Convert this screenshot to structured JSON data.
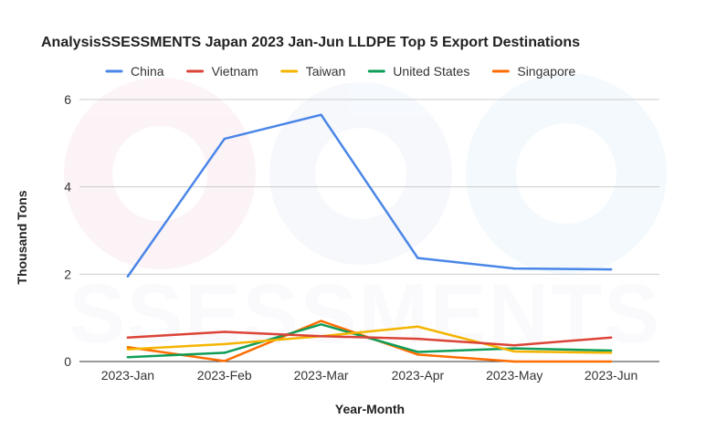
{
  "chart_data": {
    "type": "line",
    "title": "AnalysisSSESSMENTS Japan 2023 Jan-Jun LLDPE Top 5 Export Destinations",
    "xlabel": "Year-Month",
    "ylabel": "Thousand Tons",
    "categories": [
      "2023-Jan",
      "2023-Feb",
      "2023-Mar",
      "2023-Apr",
      "2023-May",
      "2023-Jun"
    ],
    "ylim": [
      0,
      6
    ],
    "yticks": [
      0,
      2,
      4,
      6
    ],
    "grid": true,
    "legend_position": "top",
    "series": [
      {
        "name": "China",
        "color": "#4a86e8",
        "values": [
          1.95,
          5.1,
          5.65,
          2.37,
          2.13,
          2.11
        ]
      },
      {
        "name": "Vietnam",
        "color": "#db4437",
        "values": [
          0.55,
          0.68,
          0.58,
          0.52,
          0.37,
          0.55
        ]
      },
      {
        "name": "Taiwan",
        "color": "#f4b400",
        "values": [
          0.28,
          0.4,
          0.58,
          0.8,
          0.23,
          0.2
        ]
      },
      {
        "name": "United States",
        "color": "#0f9d58",
        "values": [
          0.1,
          0.2,
          0.85,
          0.22,
          0.3,
          0.25
        ]
      },
      {
        "name": "Singapore",
        "color": "#ff6d00",
        "values": [
          0.33,
          0.01,
          0.93,
          0.16,
          0.0,
          0.0
        ]
      }
    ]
  },
  "watermark": {
    "text": "SSESSMENTS"
  }
}
